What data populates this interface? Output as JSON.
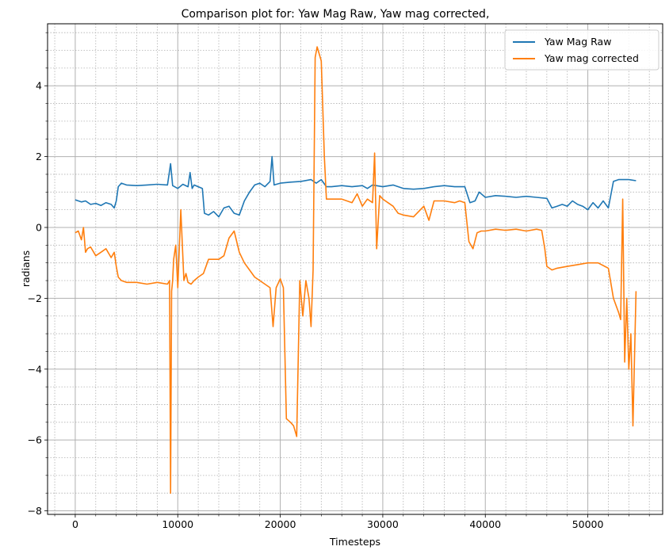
{
  "chart_data": {
    "type": "line",
    "title": "Comparison plot for: Yaw Mag Raw, Yaw mag corrected,",
    "xlabel": "Timesteps",
    "ylabel": "radians",
    "xlim": [
      -2700,
      57300
    ],
    "ylim": [
      -8.1,
      5.75
    ],
    "grid": true,
    "minor_grid": true,
    "legend_position": "top-right",
    "x_ticks": [
      0,
      10000,
      20000,
      30000,
      40000,
      50000
    ],
    "x_tick_labels": [
      "0",
      "10000",
      "20000",
      "30000",
      "40000",
      "50000"
    ],
    "y_ticks": [
      -8,
      -6,
      -4,
      -2,
      0,
      2,
      4
    ],
    "y_tick_labels": [
      "−8",
      "−6",
      "−4",
      "−2",
      "0",
      "2",
      "4"
    ],
    "series": [
      {
        "name": "Yaw Mag Raw",
        "color": "#1f77b4",
        "x": [
          0,
          600,
          1000,
          1500,
          2000,
          2500,
          3000,
          3500,
          3800,
          4000,
          4200,
          4500,
          5000,
          6000,
          7000,
          8000,
          9000,
          9300,
          9500,
          10000,
          10500,
          11000,
          11200,
          11400,
          11600,
          12000,
          12400,
          12600,
          13000,
          13500,
          14000,
          14500,
          15000,
          15500,
          16000,
          16500,
          17000,
          17500,
          18000,
          18500,
          19000,
          19200,
          19400,
          20000,
          21000,
          22000,
          23000,
          23500,
          24000,
          24500,
          25000,
          26000,
          27000,
          28000,
          28500,
          29000,
          30000,
          31000,
          32000,
          33000,
          34000,
          35000,
          36000,
          37000,
          38000,
          38500,
          39000,
          39400,
          40000,
          41000,
          42000,
          43000,
          44000,
          45000,
          46000,
          46500,
          47000,
          47500,
          48000,
          48500,
          49000,
          49500,
          50000,
          50500,
          51000,
          51500,
          52000,
          52500,
          53000,
          54000,
          54700
        ],
        "values": [
          0.78,
          0.72,
          0.75,
          0.65,
          0.68,
          0.62,
          0.7,
          0.65,
          0.55,
          0.75,
          1.15,
          1.25,
          1.2,
          1.18,
          1.2,
          1.22,
          1.2,
          1.8,
          1.18,
          1.1,
          1.22,
          1.15,
          1.55,
          1.1,
          1.2,
          1.15,
          1.1,
          0.4,
          0.35,
          0.45,
          0.3,
          0.55,
          0.6,
          0.4,
          0.35,
          0.75,
          1.0,
          1.2,
          1.25,
          1.15,
          1.3,
          2.0,
          1.2,
          1.25,
          1.28,
          1.3,
          1.35,
          1.25,
          1.35,
          1.15,
          1.15,
          1.18,
          1.15,
          1.18,
          1.1,
          1.2,
          1.15,
          1.2,
          1.1,
          1.08,
          1.1,
          1.15,
          1.18,
          1.15,
          1.15,
          0.7,
          0.75,
          1.0,
          0.85,
          0.9,
          0.88,
          0.85,
          0.88,
          0.85,
          0.82,
          0.55,
          0.6,
          0.65,
          0.6,
          0.75,
          0.65,
          0.6,
          0.5,
          0.7,
          0.55,
          0.75,
          0.55,
          1.3,
          1.35,
          1.35,
          1.32
        ]
      },
      {
        "name": "Yaw mag corrected",
        "color": "#ff7f0e",
        "x": [
          0,
          300,
          600,
          800,
          1000,
          1200,
          1500,
          2000,
          2500,
          3000,
          3500,
          3800,
          4000,
          4200,
          4500,
          5000,
          6000,
          7000,
          8000,
          9000,
          9200,
          9300,
          9400,
          9500,
          9600,
          9800,
          10000,
          10300,
          10600,
          10800,
          11000,
          11300,
          11600,
          12000,
          12500,
          13000,
          14000,
          14500,
          15000,
          15500,
          16000,
          16500,
          17000,
          17500,
          18000,
          18500,
          19000,
          19300,
          19600,
          20000,
          20300,
          20600,
          21000,
          21300,
          21600,
          21900,
          22200,
          22500,
          22800,
          23000,
          23200,
          23400,
          23600,
          24000,
          24300,
          24500,
          25000,
          26000,
          27000,
          27500,
          28000,
          28500,
          29000,
          29200,
          29400,
          29700,
          30000,
          30500,
          31000,
          31500,
          32000,
          33000,
          34000,
          34500,
          35000,
          36000,
          37000,
          37500,
          38000,
          38400,
          38800,
          39200,
          39600,
          40000,
          41000,
          42000,
          43000,
          44000,
          45000,
          45500,
          45800,
          46000,
          46500,
          47000,
          48000,
          49000,
          50000,
          51000,
          52000,
          52500,
          53000,
          53200,
          53400,
          53600,
          53800,
          54000,
          54200,
          54400,
          54700
        ],
        "values": [
          -0.15,
          -0.1,
          -0.35,
          0.0,
          -0.7,
          -0.6,
          -0.55,
          -0.8,
          -0.7,
          -0.6,
          -0.85,
          -0.7,
          -1.1,
          -1.4,
          -1.5,
          -1.55,
          -1.55,
          -1.6,
          -1.55,
          -1.6,
          -1.5,
          -7.5,
          -1.8,
          -1.5,
          -0.9,
          -0.5,
          -1.7,
          0.5,
          -1.5,
          -1.3,
          -1.55,
          -1.6,
          -1.5,
          -1.4,
          -1.3,
          -0.9,
          -0.9,
          -0.8,
          -0.3,
          -0.1,
          -0.7,
          -1.0,
          -1.2,
          -1.4,
          -1.5,
          -1.6,
          -1.7,
          -2.8,
          -1.7,
          -1.45,
          -1.7,
          -5.4,
          -5.5,
          -5.6,
          -5.9,
          -1.5,
          -2.5,
          -1.5,
          -2.0,
          -2.8,
          -1.2,
          4.8,
          5.1,
          4.7,
          2.0,
          0.8,
          0.8,
          0.8,
          0.7,
          0.95,
          0.6,
          0.8,
          0.7,
          2.1,
          -0.6,
          0.9,
          0.8,
          0.7,
          0.6,
          0.4,
          0.35,
          0.3,
          0.6,
          0.2,
          0.75,
          0.75,
          0.7,
          0.75,
          0.7,
          -0.4,
          -0.6,
          -0.15,
          -0.1,
          -0.1,
          -0.05,
          -0.08,
          -0.05,
          -0.1,
          -0.05,
          -0.08,
          -0.6,
          -1.1,
          -1.2,
          -1.15,
          -1.1,
          -1.05,
          -1.0,
          -1.0,
          -1.15,
          -2.0,
          -2.4,
          -2.6,
          0.8,
          -3.8,
          -2.0,
          -4.0,
          -3.0,
          -5.6,
          -1.8
        ]
      }
    ]
  }
}
